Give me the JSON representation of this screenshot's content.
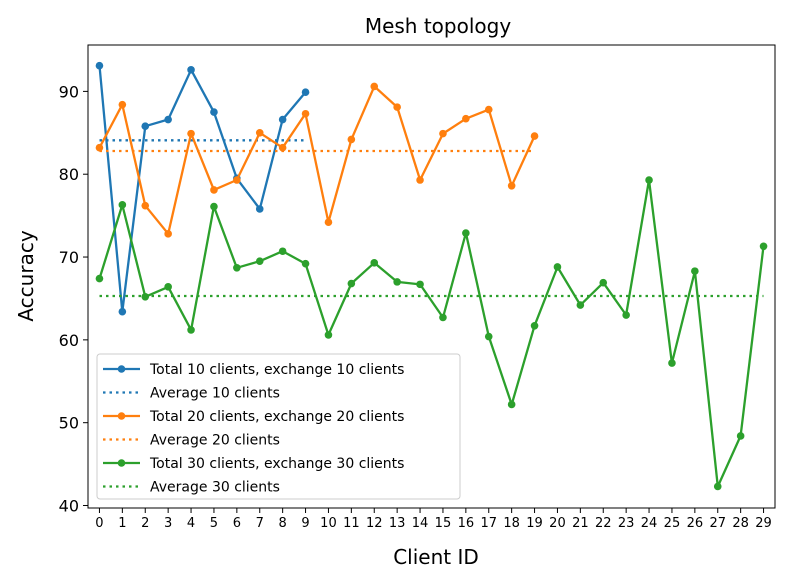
{
  "chart_data": {
    "type": "line",
    "title": "Mesh topology",
    "xlabel": "Client ID",
    "ylabel": "Accuracy",
    "xlim": [
      -0.5,
      29.5
    ],
    "ylim": [
      39.7,
      95.6
    ],
    "yticks": [
      "40",
      "50",
      "60",
      "70",
      "80",
      "90"
    ],
    "xticks": [
      "0",
      "1",
      "2",
      "3",
      "4",
      "5",
      "6",
      "7",
      "8",
      "9",
      "10",
      "11",
      "12",
      "13",
      "14",
      "15",
      "16",
      "17",
      "18",
      "19",
      "20",
      "21",
      "22",
      "23",
      "24",
      "25",
      "26",
      "27",
      "28",
      "29"
    ],
    "grid": false,
    "legend_position": "lower-left",
    "series": [
      {
        "name": "Total 10 clients, exchange 10 clients",
        "color": "#1f77b4",
        "style": "solid-marker",
        "x": [
          0,
          1,
          2,
          3,
          4,
          5,
          6,
          7,
          8,
          9
        ],
        "values": [
          93.1,
          63.4,
          85.8,
          86.6,
          92.6,
          87.5,
          79.5,
          75.8,
          86.6,
          89.9
        ]
      },
      {
        "name": "Average 10 clients",
        "color": "#1f77b4",
        "style": "dotted",
        "x": [
          0,
          9
        ],
        "values": [
          84.1,
          84.1
        ]
      },
      {
        "name": "Total 20 clients, exchange 20 clients",
        "color": "#ff7f0e",
        "style": "solid-marker",
        "x": [
          0,
          1,
          2,
          3,
          4,
          5,
          6,
          7,
          8,
          9,
          10,
          11,
          12,
          13,
          14,
          15,
          16,
          17,
          18,
          19
        ],
        "values": [
          83.2,
          88.4,
          76.2,
          72.8,
          84.9,
          78.1,
          79.3,
          85.0,
          83.2,
          87.3,
          74.2,
          84.2,
          90.6,
          88.1,
          79.3,
          84.9,
          86.7,
          87.8,
          78.6,
          84.6
        ]
      },
      {
        "name": "Average 20 clients",
        "color": "#ff7f0e",
        "style": "dotted",
        "x": [
          0,
          19
        ],
        "values": [
          82.8,
          82.8
        ]
      },
      {
        "name": "Total 30 clients, exchange 30 clients",
        "color": "#2ca02c",
        "style": "solid-marker",
        "x": [
          0,
          1,
          2,
          3,
          4,
          5,
          6,
          7,
          8,
          9,
          10,
          11,
          12,
          13,
          14,
          15,
          16,
          17,
          18,
          19,
          20,
          21,
          22,
          23,
          24,
          25,
          26,
          27,
          28,
          29
        ],
        "values": [
          67.4,
          76.3,
          65.2,
          66.4,
          61.2,
          76.1,
          68.7,
          69.5,
          70.7,
          69.2,
          60.6,
          66.8,
          69.3,
          67.0,
          66.7,
          62.7,
          72.9,
          60.4,
          52.2,
          61.7,
          68.8,
          64.2,
          66.9,
          63.0,
          79.3,
          57.2,
          68.3,
          42.3,
          48.4,
          71.3
        ]
      },
      {
        "name": "Average 30 clients",
        "color": "#2ca02c",
        "style": "dotted",
        "x": [
          0,
          29
        ],
        "values": [
          65.3,
          65.3
        ]
      }
    ]
  }
}
